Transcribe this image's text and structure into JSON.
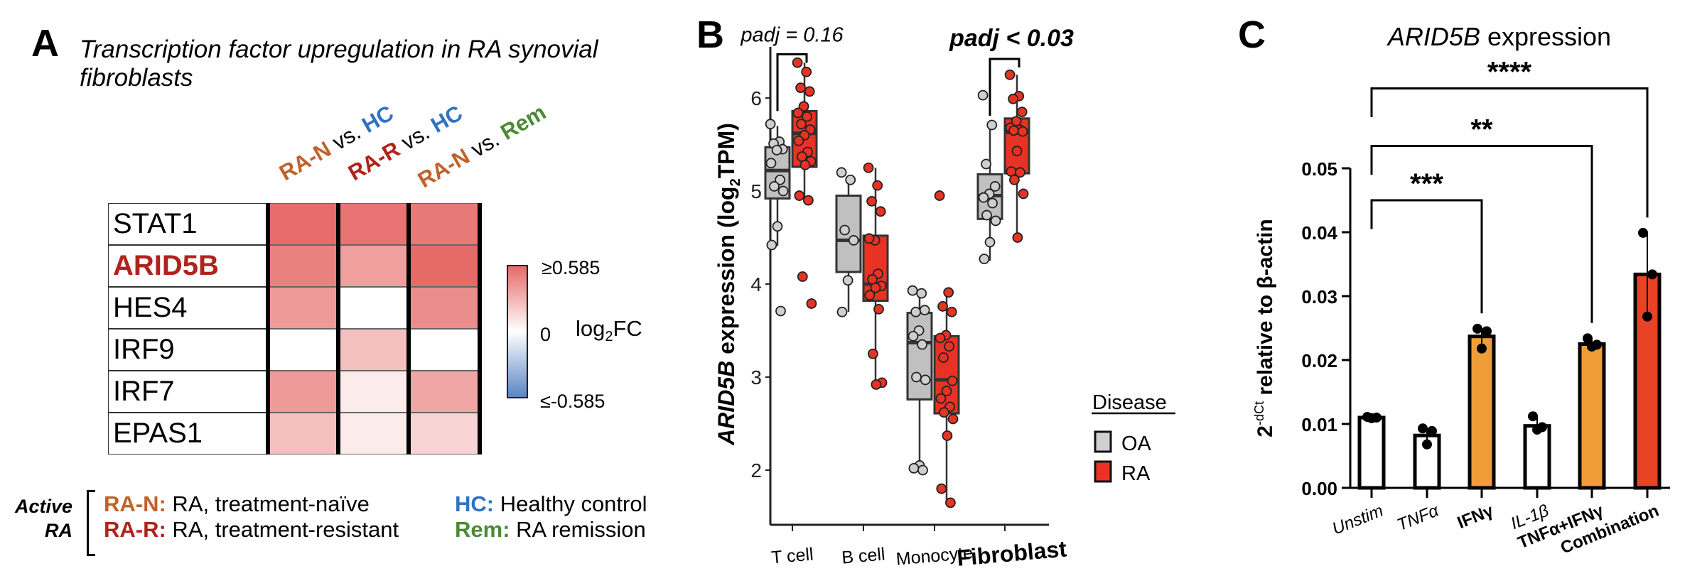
{
  "panel_a": {
    "letter": "A",
    "title": "Transcription factor upregulation in RA synovial fibroblasts",
    "columns": [
      {
        "group1": "RA-N",
        "vs": "vs.",
        "group2": "HC",
        "color1": "#c0622a",
        "color2": "#2f73c1"
      },
      {
        "group1": "RA-R",
        "vs": "vs.",
        "group2": "HC",
        "color1": "#b0231c",
        "color2": "#2f73c1"
      },
      {
        "group1": "RA-N",
        "vs": "vs.",
        "group2": "Rem",
        "color1": "#c0622a",
        "color2": "#4a8a35"
      }
    ],
    "genes": [
      {
        "name": "STAT1",
        "highlight": false,
        "values": [
          0.58,
          0.55,
          0.53
        ]
      },
      {
        "name": "ARID5B",
        "highlight": true,
        "values": [
          0.5,
          0.38,
          0.585
        ]
      },
      {
        "name": "HES4",
        "highlight": false,
        "values": [
          0.4,
          0.0,
          0.45
        ]
      },
      {
        "name": "IRF9",
        "highlight": false,
        "values": [
          0.0,
          0.25,
          0.0
        ]
      },
      {
        "name": "IRF7",
        "highlight": false,
        "values": [
          0.4,
          0.08,
          0.35
        ]
      },
      {
        "name": "EPAS1",
        "highlight": false,
        "values": [
          0.25,
          0.08,
          0.17
        ]
      }
    ],
    "highlight_color": "#b0231c",
    "colorbar": {
      "max_label": "≥0.585",
      "mid_label": "0",
      "min_label": "≤-0.585",
      "title_main": "log",
      "title_sub": "2",
      "title_end": "FC",
      "max_value": 0.585,
      "min_value": -0.585,
      "high_color": "#e56b69",
      "mid_color": "#ffffff",
      "low_color": "#5b86c4"
    },
    "footnote": {
      "bracket_label_line1": "Active",
      "bracket_label_line2": "RA",
      "items": [
        {
          "abbr": "RA-N:",
          "desc": "RA, treatment-naïve",
          "color": "#c0622a"
        },
        {
          "abbr": "RA-R:",
          "desc": "RA, treatment-resistant",
          "color": "#b0231c"
        },
        {
          "abbr": "HC:",
          "desc": "Healthy control",
          "color": "#2f73c1"
        },
        {
          "abbr": "Rem:",
          "desc": "RA remission",
          "color": "#4a8a35"
        }
      ]
    }
  },
  "panel_b": {
    "letter": "B",
    "chart_data": {
      "type": "box",
      "ylabel_gene": "ARID5B",
      "ylabel_rest": " expression (log",
      "ylabel_sub": "2",
      "ylabel_end": "TPM)",
      "ylim": [
        1.45,
        6.55
      ],
      "yticks": [
        2,
        3,
        4,
        5,
        6
      ],
      "categories": [
        "T cell",
        "B cell",
        "Monocyte",
        "Fibroblast"
      ],
      "bold_category": "Fibroblast",
      "legend": {
        "title": "Disease",
        "entries": [
          {
            "name": "OA",
            "color": "#c0c0c0"
          },
          {
            "name": "RA",
            "color": "#e83324"
          }
        ],
        "placement": "right"
      },
      "series": [
        {
          "name": "OA",
          "color": "#c0c0c0",
          "boxes": [
            {
              "q1": 4.92,
              "median": 5.22,
              "q3": 5.47,
              "whisker_low": 4.41,
              "whisker_high": 5.7,
              "points": [
                5.72,
                5.53,
                5.51,
                5.45,
                5.44,
                5.3,
                5.12,
                5.05,
                5.0,
                4.62,
                4.42,
                3.71
              ]
            },
            {
              "q1": 4.13,
              "median": 4.47,
              "q3": 4.95,
              "whisker_low": 3.7,
              "whisker_high": 5.17,
              "points": [
                5.2,
                5.12,
                4.58,
                4.47,
                4.04,
                3.7
              ]
            },
            {
              "q1": 2.76,
              "median": 3.37,
              "q3": 3.69,
              "whisker_low": 2.04,
              "whisker_high": 3.91,
              "points": [
                3.93,
                3.9,
                3.7,
                3.72,
                3.5,
                3.44,
                3.35,
                3.0,
                2.97,
                2.05,
                2.02,
                2.0
              ]
            },
            {
              "q1": 4.7,
              "median": 4.95,
              "q3": 5.18,
              "whisker_low": 4.25,
              "whisker_high": 5.69,
              "points": [
                6.03,
                5.71,
                5.29,
                5.05,
                4.97,
                4.93,
                4.87,
                4.74,
                4.68,
                4.45,
                4.27
              ]
            }
          ]
        },
        {
          "name": "RA",
          "color": "#e83324",
          "boxes": [
            {
              "q1": 5.26,
              "median": 5.62,
              "q3": 5.86,
              "whisker_low": 4.87,
              "whisker_high": 6.38,
              "points": [
                6.38,
                6.28,
                6.11,
                6.07,
                5.91,
                5.84,
                5.8,
                5.72,
                5.66,
                5.6,
                5.54,
                5.42,
                5.37,
                5.32,
                5.28,
                4.95,
                4.9,
                4.08,
                3.79
              ]
            },
            {
              "q1": 3.82,
              "median": 4.0,
              "q3": 4.52,
              "whisker_low": 2.92,
              "whisker_high": 5.25,
              "points": [
                5.25,
                5.06,
                4.89,
                4.78,
                4.47,
                4.49,
                4.11,
                4.05,
                3.98,
                3.96,
                3.88,
                3.73,
                3.25,
                2.94,
                2.92
              ]
            },
            {
              "q1": 2.61,
              "median": 2.97,
              "q3": 3.44,
              "whisker_low": 1.65,
              "whisker_high": 3.91,
              "points": [
                4.95,
                3.91,
                3.76,
                3.7,
                3.45,
                3.42,
                3.33,
                3.21,
                2.96,
                2.85,
                2.77,
                2.68,
                2.62,
                2.55,
                2.37,
                1.8,
                1.65
              ]
            },
            {
              "q1": 5.19,
              "median": 5.63,
              "q3": 5.78,
              "whisker_low": 4.48,
              "whisker_high": 6.25,
              "points": [
                6.25,
                6.02,
                5.99,
                5.85,
                5.75,
                5.68,
                5.66,
                5.65,
                5.64,
                5.43,
                5.21,
                5.2,
                5.12,
                4.97,
                4.5
              ]
            }
          ]
        }
      ],
      "annotations": [
        {
          "text": "padj = 0.16",
          "category": "T cell",
          "bold": false,
          "y": 6.47
        },
        {
          "text": "padj < 0.03",
          "category": "Fibroblast",
          "bold": true,
          "y": 6.42
        }
      ]
    }
  },
  "panel_c": {
    "letter": "C",
    "chart_data": {
      "type": "bar",
      "title_gene": "ARID5B",
      "title_rest": " expression",
      "ylabel_main": "2",
      "ylabel_sup": "-dCt",
      "ylabel_rest": " relative to β-actin",
      "ylim": [
        0,
        0.05
      ],
      "yticks": [
        "0.00",
        "0.01",
        "0.02",
        "0.03",
        "0.04",
        "0.05"
      ],
      "categories": [
        "Unstim",
        "TNFα",
        "IFNγ",
        "IL-1β",
        "TNFα+IFNγ",
        "Combination"
      ],
      "bold_categories": [
        "IFNγ",
        "TNFα+IFNγ",
        "Combination"
      ],
      "values": [
        0.011,
        0.0082,
        0.0237,
        0.0097,
        0.0225,
        0.0334
      ],
      "colors": [
        "#ffffff",
        "#ffffff",
        "#f09d38",
        "#ffffff",
        "#f09d38",
        "#e84327"
      ],
      "points": [
        [
          0.0111,
          0.011,
          0.0109
        ],
        [
          0.0093,
          0.0089,
          0.0068
        ],
        [
          0.0249,
          0.0245,
          0.0218
        ],
        [
          0.0112,
          0.0095,
          0.0091
        ],
        [
          0.0234,
          0.0224,
          0.0221
        ],
        [
          0.0399,
          0.0334,
          0.0268
        ]
      ],
      "significance": [
        {
          "from": 0,
          "to": 2,
          "label": "***",
          "y": 0.045
        },
        {
          "from": 0,
          "to": 4,
          "label": "**",
          "y": 0.0535
        },
        {
          "from": 0,
          "to": 5,
          "label": "****",
          "y": 0.0625
        }
      ]
    }
  }
}
